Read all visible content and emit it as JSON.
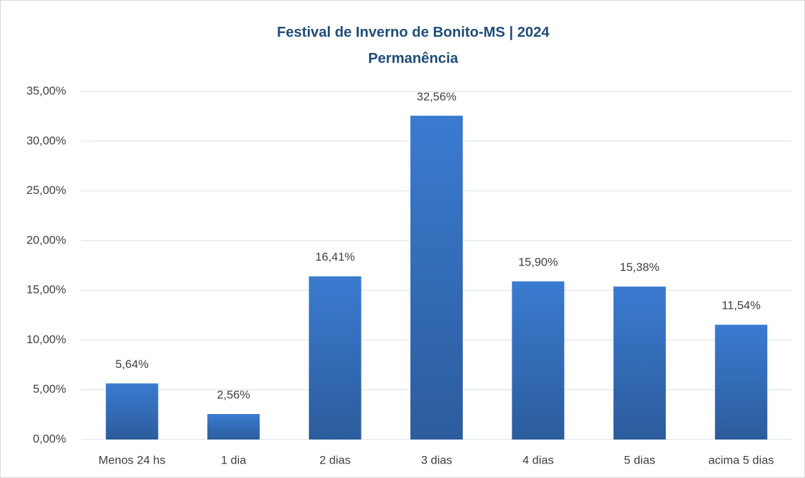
{
  "chart_data": {
    "type": "bar",
    "title": [
      "Festival de Inverno de Bonito-MS | 2024",
      "Permanência"
    ],
    "categories": [
      "Menos 24 hs",
      "1 dia",
      "2 dias",
      "3 dias",
      "4 dias",
      "5 dias",
      "acima 5 dias"
    ],
    "values": [
      5.64,
      2.56,
      16.41,
      32.56,
      15.9,
      15.38,
      11.54
    ],
    "value_labels": [
      "5,64%",
      "2,56%",
      "16,41%",
      "32,56%",
      "15,90%",
      "15,38%",
      "11,54%"
    ],
    "color": "#3a7bd0",
    "ylim": [
      0,
      35
    ],
    "yticks": [
      {
        "value": 0,
        "label": "0,00%"
      },
      {
        "value": 5,
        "label": "5,00%"
      },
      {
        "value": 10,
        "label": "10,00%"
      },
      {
        "value": 15,
        "label": "15,00%"
      },
      {
        "value": 20,
        "label": "20,00%"
      },
      {
        "value": 25,
        "label": "25,00%"
      },
      {
        "value": 30,
        "label": "30,00%"
      },
      {
        "value": 35,
        "label": "35,00%"
      }
    ],
    "grid": true
  }
}
